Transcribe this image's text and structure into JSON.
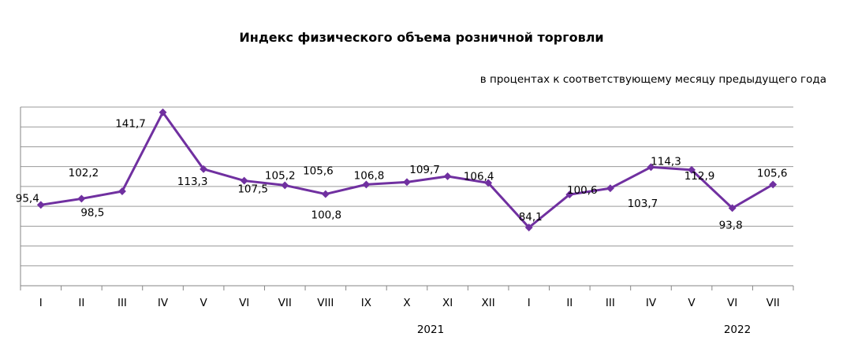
{
  "chart_data": {
    "type": "line",
    "title": "Индекс физического объема розничной торговли",
    "subtitle": "в процентах к соответствующему месяцу предыдущего года",
    "categories": [
      "I",
      "II",
      "III",
      "IV",
      "V",
      "VI",
      "VII",
      "VIII",
      "IX",
      "X",
      "XI",
      "XII",
      "I",
      "II",
      "III",
      "IV",
      "V",
      "VI",
      "VII"
    ],
    "year_labels": [
      {
        "label": "2021",
        "span": [
          0,
          11
        ]
      },
      {
        "label": "2022",
        "span": [
          12,
          18
        ]
      }
    ],
    "series": [
      {
        "values": [
          95.4,
          98.5,
          102.2,
          141.7,
          113.3,
          107.5,
          105.2,
          100.8,
          105.6,
          106.8,
          109.7,
          106.4,
          84.1,
          100.6,
          103.7,
          114.3,
          112.9,
          93.8,
          105.6
        ],
        "data_labels": [
          "95,4",
          "98,5",
          "102,2",
          "141,7",
          "113,3",
          "107,5",
          "105,2",
          "100,8",
          "105,6",
          "106,8",
          "109,7",
          "106,4",
          "84,1",
          "100,6",
          "103,7",
          "114,3",
          "112,9",
          "93,8",
          "105,6"
        ],
        "color": "#7030A0"
      }
    ],
    "ylim": [
      0,
      160
    ],
    "grid": true,
    "legend": "none"
  }
}
